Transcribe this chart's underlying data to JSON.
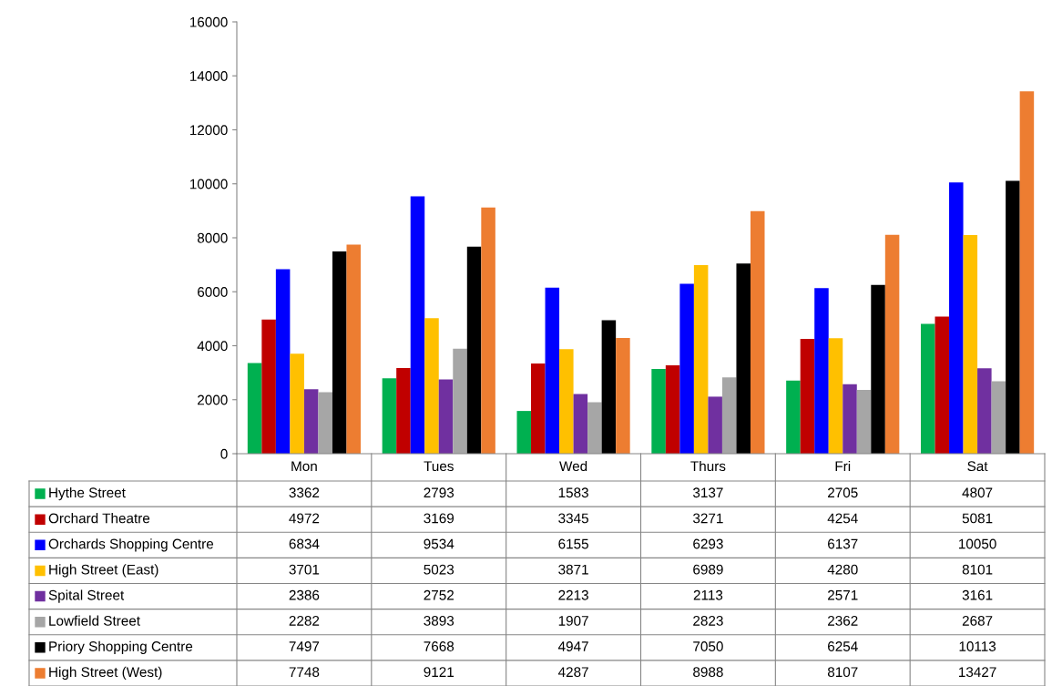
{
  "chart_data": {
    "type": "bar",
    "categories": [
      "Mon",
      "Tues",
      "Wed",
      "Thurs",
      "Fri",
      "Sat"
    ],
    "series": [
      {
        "name": "Hythe Street",
        "color": "#00b050",
        "values": [
          3362,
          2793,
          1583,
          3137,
          2705,
          4807
        ]
      },
      {
        "name": "Orchard Theatre",
        "color": "#c00000",
        "values": [
          4972,
          3169,
          3345,
          3271,
          4254,
          5081
        ]
      },
      {
        "name": "Orchards Shopping Centre",
        "color": "#0000ff",
        "values": [
          6834,
          9534,
          6155,
          6293,
          6137,
          10050
        ]
      },
      {
        "name": "High Street (East)",
        "color": "#ffc000",
        "values": [
          3701,
          5023,
          3871,
          6989,
          4280,
          8101
        ]
      },
      {
        "name": "Spital Street",
        "color": "#7030a0",
        "values": [
          2386,
          2752,
          2213,
          2113,
          2571,
          3161
        ]
      },
      {
        "name": "Lowfield Street",
        "color": "#a6a6a6",
        "values": [
          2282,
          3893,
          1907,
          2823,
          2362,
          2687
        ]
      },
      {
        "name": "Priory Shopping Centre",
        "color": "#000000",
        "values": [
          7497,
          7668,
          4947,
          7050,
          6254,
          10113
        ]
      },
      {
        "name": "High Street (West)",
        "color": "#ed7d31",
        "values": [
          7748,
          9121,
          4287,
          8988,
          8107,
          13427
        ]
      }
    ],
    "ylim": [
      0,
      16000
    ],
    "yticks": [
      0,
      2000,
      4000,
      6000,
      8000,
      10000,
      12000,
      14000,
      16000
    ],
    "grid": false,
    "data_labels": true,
    "legend": "bottom"
  }
}
